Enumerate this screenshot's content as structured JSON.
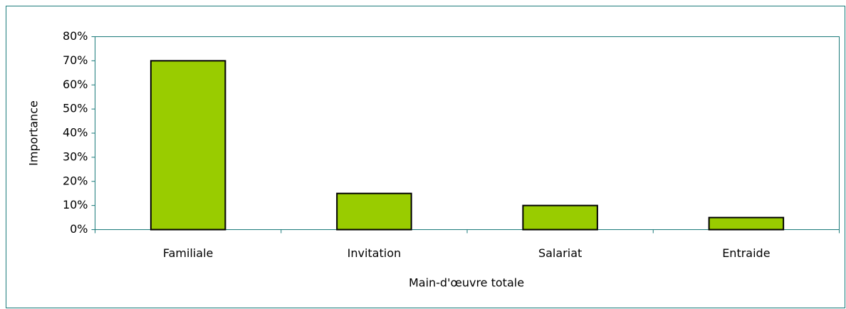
{
  "chart_data": {
    "type": "bar",
    "x_label": "Main-d'œuvre totale",
    "y_label": "Importance",
    "categories": [
      "Familiale",
      "Invitation",
      "Salariat",
      "Entraide"
    ],
    "values": [
      70,
      15,
      10,
      5
    ],
    "color": "#99cc00",
    "ylim": [
      0,
      80
    ],
    "yticks": [
      {
        "value": 0,
        "label": "0%"
      },
      {
        "value": 10,
        "label": "10%"
      },
      {
        "value": 20,
        "label": "20%"
      },
      {
        "value": 30,
        "label": "30%"
      },
      {
        "value": 40,
        "label": "40%"
      },
      {
        "value": 50,
        "label": "50%"
      },
      {
        "value": 60,
        "label": "60%"
      },
      {
        "value": 70,
        "label": "70%"
      },
      {
        "value": 80,
        "label": "80%"
      }
    ],
    "grid": false
  }
}
